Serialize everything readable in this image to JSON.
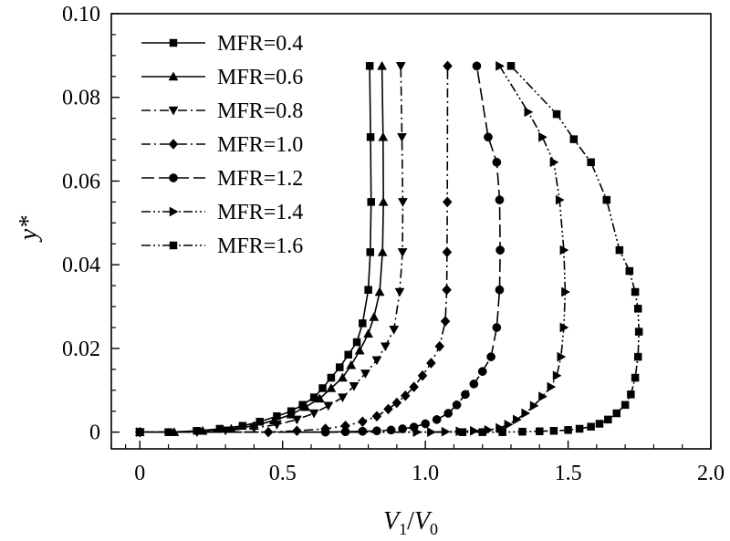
{
  "chart_data": {
    "type": "line",
    "title": "",
    "xlabel": "V1/V0",
    "xlabel_main": "V",
    "xlabel_sub1": "1",
    "xlabel_sep": "/",
    "xlabel_sub2": "0",
    "ylabel": "y*",
    "xlim": [
      -0.1,
      2.0
    ],
    "ylim": [
      -0.004,
      0.1
    ],
    "xticks": [
      0,
      0.5,
      1.0,
      1.5,
      2.0
    ],
    "xtick_labels": [
      "0",
      "0.5",
      "1.0",
      "1.5",
      "2.0"
    ],
    "yticks": [
      0,
      0.02,
      0.04,
      0.06,
      0.08,
      0.1
    ],
    "ytick_labels": [
      "0",
      "0.02",
      "0.04",
      "0.06",
      "0.08",
      "0.10"
    ],
    "grid": false,
    "legend_position": "top-left",
    "series": [
      {
        "name": "MFR=0.4",
        "marker": "square",
        "dash": "solid",
        "x": [
          0,
          0.1,
          0.2,
          0.28,
          0.36,
          0.42,
          0.48,
          0.53,
          0.57,
          0.61,
          0.64,
          0.67,
          0.7,
          0.73,
          0.76,
          0.78,
          0.8,
          0.807,
          0.81,
          0.808,
          0.805
        ],
        "y": [
          0,
          0,
          0.0003,
          0.0008,
          0.0015,
          0.0025,
          0.0038,
          0.005,
          0.0065,
          0.0083,
          0.0105,
          0.013,
          0.0155,
          0.0185,
          0.0215,
          0.026,
          0.034,
          0.043,
          0.055,
          0.0705,
          0.0875
        ]
      },
      {
        "name": "MFR=0.6",
        "marker": "triangle-up",
        "dash": "solid",
        "x": [
          0,
          0.12,
          0.22,
          0.32,
          0.4,
          0.47,
          0.53,
          0.58,
          0.63,
          0.67,
          0.71,
          0.74,
          0.77,
          0.8,
          0.82,
          0.84,
          0.85,
          0.853,
          0.852,
          0.848
        ],
        "y": [
          0,
          0,
          0.0003,
          0.0008,
          0.0015,
          0.0028,
          0.0042,
          0.006,
          0.008,
          0.0105,
          0.013,
          0.016,
          0.0195,
          0.0235,
          0.0275,
          0.0335,
          0.043,
          0.055,
          0.0705,
          0.0875
        ]
      },
      {
        "name": "MFR=0.8",
        "marker": "triangle-down",
        "dash": "dashdot",
        "x": [
          0,
          0.2,
          0.3,
          0.4,
          0.48,
          0.55,
          0.61,
          0.66,
          0.71,
          0.75,
          0.79,
          0.83,
          0.86,
          0.89,
          0.91,
          0.92,
          0.921,
          0.918,
          0.914
        ],
        "y": [
          0,
          0,
          0.0004,
          0.001,
          0.0018,
          0.003,
          0.0045,
          0.0063,
          0.0083,
          0.011,
          0.014,
          0.0172,
          0.0205,
          0.0245,
          0.0335,
          0.043,
          0.055,
          0.0705,
          0.0875
        ]
      },
      {
        "name": "MFR=1.0",
        "marker": "diamond",
        "dash": "dashdot",
        "x": [
          0,
          0.45,
          0.55,
          0.65,
          0.72,
          0.78,
          0.83,
          0.87,
          0.9,
          0.93,
          0.96,
          0.99,
          1.02,
          1.05,
          1.07,
          1.075,
          1.076,
          1.077,
          1.078
        ],
        "y": [
          0,
          0,
          0.0003,
          0.0008,
          0.0015,
          0.0025,
          0.0038,
          0.0055,
          0.007,
          0.0087,
          0.0108,
          0.0135,
          0.0165,
          0.0205,
          0.0265,
          0.034,
          0.043,
          0.055,
          0.0875
        ]
      },
      {
        "name": "MFR=1.2",
        "marker": "circle",
        "dash": "longdash",
        "x": [
          0,
          0.65,
          0.72,
          0.78,
          0.83,
          0.88,
          0.92,
          0.96,
          1.0,
          1.04,
          1.08,
          1.11,
          1.14,
          1.17,
          1.2,
          1.23,
          1.25,
          1.26,
          1.262,
          1.26,
          1.25,
          1.22,
          1.18
        ],
        "y": [
          0,
          0,
          0.0001,
          0.0002,
          0.0003,
          0.0005,
          0.0008,
          0.0012,
          0.002,
          0.003,
          0.0045,
          0.0065,
          0.009,
          0.0115,
          0.0145,
          0.018,
          0.025,
          0.034,
          0.0435,
          0.0555,
          0.0645,
          0.0705,
          0.0875
        ]
      },
      {
        "name": "MFR=1.4",
        "marker": "triangle-right",
        "dash": "dashdotdot",
        "x": [
          0,
          0.97,
          1.02,
          1.07,
          1.12,
          1.17,
          1.22,
          1.26,
          1.29,
          1.32,
          1.35,
          1.38,
          1.41,
          1.44,
          1.46,
          1.475,
          1.485,
          1.49,
          1.485,
          1.47,
          1.45,
          1.41,
          1.36,
          1.26
        ],
        "y": [
          0,
          0,
          0,
          0.0001,
          0.0002,
          0.0003,
          0.0005,
          0.001,
          0.0018,
          0.003,
          0.0045,
          0.0063,
          0.0085,
          0.0108,
          0.0135,
          0.018,
          0.025,
          0.0335,
          0.0435,
          0.0555,
          0.0645,
          0.0705,
          0.0765,
          0.0875
        ]
      },
      {
        "name": "MFR=1.6",
        "marker": "square",
        "dash": "dashdotdot",
        "x": [
          0,
          1.13,
          1.2,
          1.27,
          1.34,
          1.4,
          1.45,
          1.5,
          1.54,
          1.58,
          1.61,
          1.64,
          1.67,
          1.7,
          1.72,
          1.735,
          1.745,
          1.748,
          1.745,
          1.735,
          1.715,
          1.68,
          1.635,
          1.58,
          1.52,
          1.46,
          1.3
        ],
        "y": [
          0,
          0,
          0,
          0,
          0.0001,
          0.0002,
          0.0003,
          0.0005,
          0.0008,
          0.0013,
          0.002,
          0.003,
          0.0045,
          0.0065,
          0.009,
          0.013,
          0.018,
          0.024,
          0.0295,
          0.0335,
          0.0385,
          0.0435,
          0.0555,
          0.0645,
          0.07,
          0.076,
          0.0875
        ]
      }
    ]
  }
}
